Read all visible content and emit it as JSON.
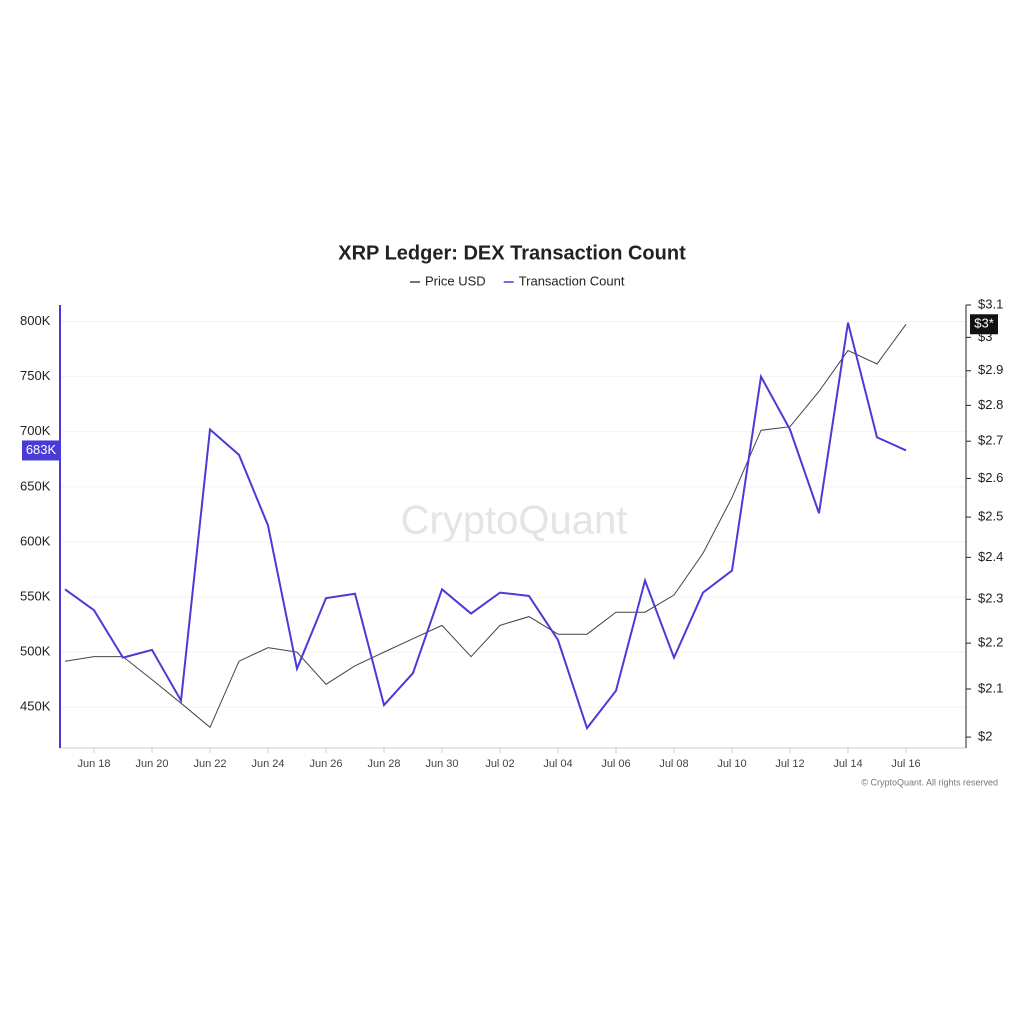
{
  "chart_data": {
    "type": "line",
    "title": "XRP Ledger: DEX Transaction Count",
    "watermark": "CryptoQuant",
    "copyright": "© CryptoQuant. All rights reserved",
    "categories": [
      null,
      "Jun 18",
      null,
      "Jun 20",
      null,
      "Jun 22",
      null,
      "Jun 24",
      null,
      "Jun 26",
      null,
      "Jun 28",
      null,
      "Jun 30",
      null,
      "Jul 02",
      null,
      "Jul 04",
      null,
      "Jul 06",
      null,
      "Jul 08",
      null,
      "Jul 10",
      null,
      "Jul 12",
      null,
      "Jul 14",
      null,
      "Jul 16"
    ],
    "series": [
      {
        "name": "Price USD",
        "color": "#444444",
        "axis": "y2",
        "last_label": "$3*",
        "values": [
          2.16,
          2.17,
          2.17,
          2.12,
          2.07,
          2.02,
          2.16,
          2.19,
          2.18,
          2.11,
          2.15,
          2.18,
          2.21,
          2.24,
          2.17,
          2.24,
          2.26,
          2.22,
          2.22,
          2.27,
          2.27,
          2.31,
          2.41,
          2.55,
          2.73,
          2.74,
          2.84,
          2.96,
          2.92,
          3.04
        ]
      },
      {
        "name": "Transaction Count",
        "color": "#4b3bd6",
        "last_label": "683K",
        "values": [
          557000,
          538000,
          495000,
          502000,
          456000,
          702000,
          679000,
          615000,
          485000,
          549000,
          553000,
          452000,
          481000,
          557000,
          535000,
          554000,
          551000,
          511000,
          431000,
          465000,
          565000,
          495000,
          554000,
          574000,
          750000,
          702000,
          626000,
          799000,
          695000,
          683000
        ]
      }
    ],
    "ylim": [
      413000,
      815000
    ],
    "yticks": [
      {
        "value": 450000,
        "label": "450K"
      },
      {
        "value": 500000,
        "label": "500K"
      },
      {
        "value": 550000,
        "label": "550K"
      },
      {
        "value": 600000,
        "label": "600K"
      },
      {
        "value": 650000,
        "label": "650K"
      },
      {
        "value": 700000,
        "label": "700K"
      },
      {
        "value": 750000,
        "label": "750K"
      },
      {
        "value": 800000,
        "label": "800K"
      }
    ],
    "y2lim": [
      1.978,
      3.1
    ],
    "y2log": true,
    "y2ticks": [
      {
        "value": 2,
        "label": "$2"
      },
      {
        "value": 2.1,
        "label": "$2.1"
      },
      {
        "value": 2.2,
        "label": "$2.2"
      },
      {
        "value": 2.3,
        "label": "$2.3"
      },
      {
        "value": 2.4,
        "label": "$2.4"
      },
      {
        "value": 2.5,
        "label": "$2.5"
      },
      {
        "value": 2.6,
        "label": "$2.6"
      },
      {
        "value": 2.7,
        "label": "$2.7"
      },
      {
        "value": 2.8,
        "label": "$2.8"
      },
      {
        "value": 2.9,
        "label": "$2.9"
      },
      {
        "value": 3,
        "label": "$3"
      },
      {
        "value": 3.1,
        "label": "$3.1"
      }
    ],
    "grid": true
  }
}
